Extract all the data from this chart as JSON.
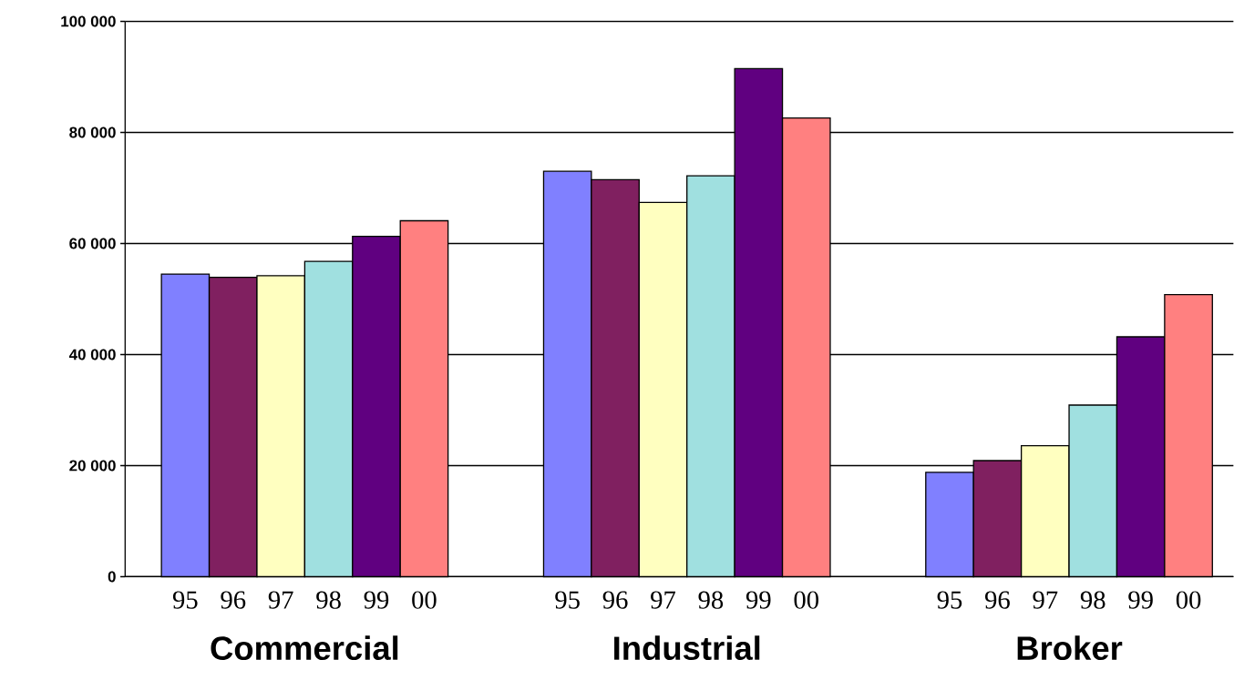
{
  "chart_data": {
    "type": "bar",
    "categories": [
      "Commercial",
      "Industrial",
      "Broker"
    ],
    "series": [
      {
        "name": "95",
        "color": "#8080ff",
        "values": [
          54500,
          73000,
          18800
        ]
      },
      {
        "name": "96",
        "color": "#802060",
        "values": [
          53900,
          71500,
          20900
        ]
      },
      {
        "name": "97",
        "color": "#ffffc0",
        "values": [
          54200,
          67400,
          23600
        ]
      },
      {
        "name": "98",
        "color": "#a0e0e0",
        "values": [
          56800,
          72200,
          30900
        ]
      },
      {
        "name": "99",
        "color": "#600080",
        "values": [
          61300,
          91500,
          43200
        ]
      },
      {
        "name": "00",
        "color": "#ff8080",
        "values": [
          64100,
          82600,
          50800
        ]
      }
    ],
    "ylim": [
      0,
      100000
    ],
    "yticks": [
      {
        "value": 0,
        "label": "0"
      },
      {
        "value": 20000,
        "label": "20 000"
      },
      {
        "value": 40000,
        "label": "40 000"
      },
      {
        "value": 60000,
        "label": "60 000"
      },
      {
        "value": 80000,
        "label": "80 000"
      },
      {
        "value": 100000,
        "label": "100 000"
      }
    ],
    "grid": "y"
  }
}
